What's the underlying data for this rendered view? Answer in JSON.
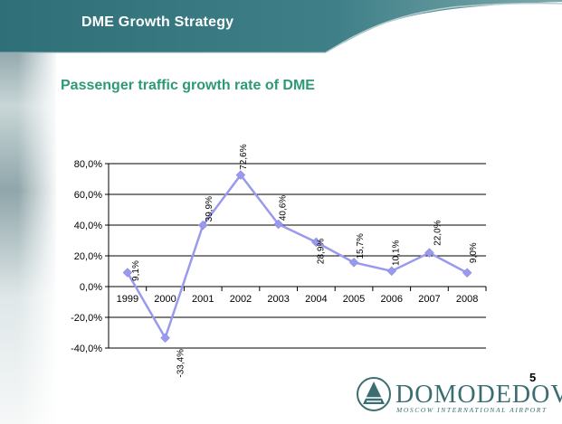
{
  "header": {
    "title": "DME Growth Strategy"
  },
  "subtitle": "Passenger traffic growth rate of DME",
  "page_number": "5",
  "logo": {
    "name": "DOMODEDOVO",
    "tagline": "MOSCOW INTERNATIONAL AIRPORT",
    "icon": "domodedovo-logo-icon"
  },
  "colors": {
    "header_teal": "#3f7f86",
    "subtitle_green": "#2d9a74",
    "series": "#9999ee",
    "logo": "#3a6e72"
  },
  "chart_data": {
    "type": "line",
    "title": "",
    "xlabel": "",
    "ylabel": "",
    "categories": [
      "1999",
      "2000",
      "2001",
      "2002",
      "2003",
      "2004",
      "2005",
      "2006",
      "2007",
      "2008"
    ],
    "series": [
      {
        "values": [
          9.1,
          -33.4,
          39.9,
          72.6,
          40.6,
          28.9,
          15.7,
          10.1,
          22.0,
          9.0
        ]
      }
    ],
    "data_labels": [
      "9,1%",
      "-33,4%",
      "39,9%",
      "72,6%",
      "40,6%",
      "28,9%",
      "15,7%",
      "10,1%",
      "22,0%",
      "9,0%"
    ],
    "y_ticks": [
      "80,0%",
      "60,0%",
      "40,0%",
      "20,0%",
      "0,0%",
      "-20,0%",
      "-40,0%"
    ],
    "ylim": [
      -40,
      80
    ],
    "grid": true,
    "legend": "none"
  }
}
